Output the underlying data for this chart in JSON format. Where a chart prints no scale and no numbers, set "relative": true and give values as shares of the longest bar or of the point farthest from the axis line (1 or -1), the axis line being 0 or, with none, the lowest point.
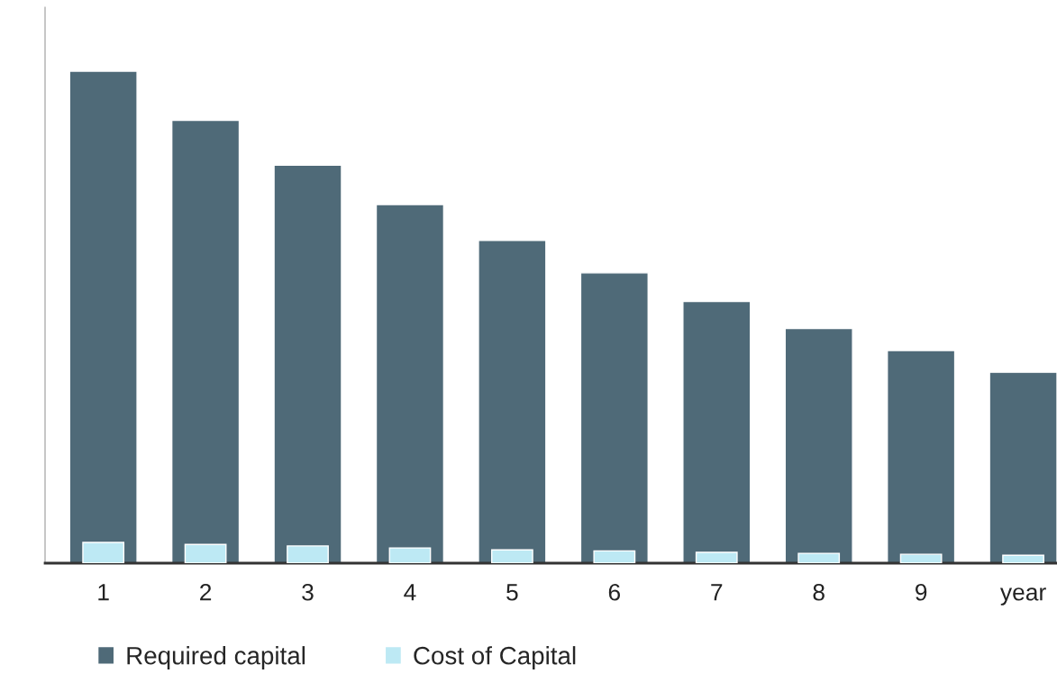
{
  "chart_data": {
    "type": "bar",
    "relative": true,
    "categories": [
      "1",
      "2",
      "3",
      "4",
      "5",
      "6",
      "7",
      "8",
      "9",
      "year"
    ],
    "series": [
      {
        "name": "Required capital",
        "color": "#4f6a78",
        "values": [
          1,
          0.9,
          0.809,
          0.729,
          0.656,
          0.59,
          0.532,
          0.477,
          0.432,
          0.388
        ]
      },
      {
        "name": "Cost of Capital",
        "color": "#bde9f4",
        "values": [
          0.042,
          0.038,
          0.035,
          0.031,
          0.027,
          0.025,
          0.022,
          0.02,
          0.018,
          0.016
        ]
      }
    ],
    "legend": "bottom",
    "grid": false
  }
}
